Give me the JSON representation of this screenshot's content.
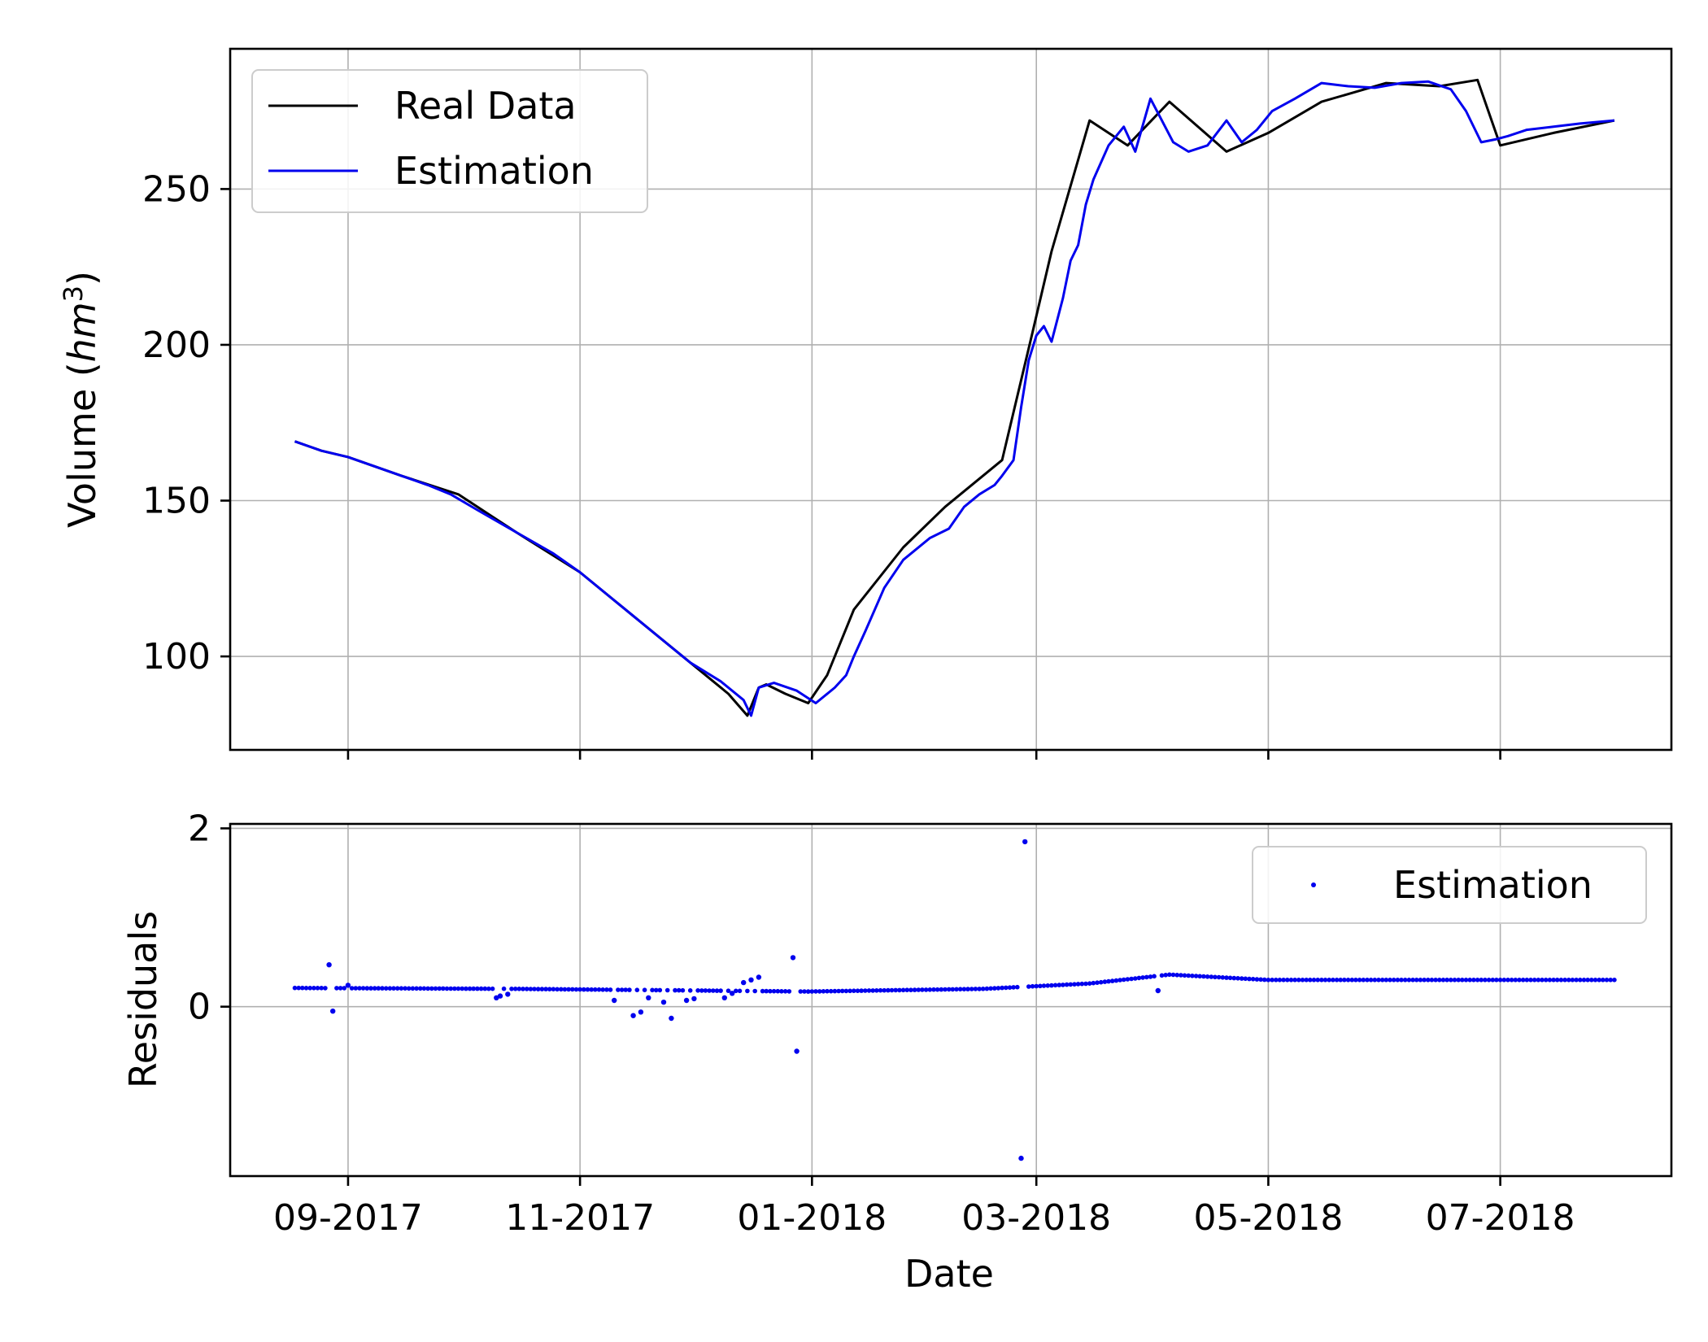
{
  "chart_data": [
    {
      "type": "line",
      "xlabel": "",
      "ylabel": "Volume",
      "ylabel_unit_base": "hm",
      "ylabel_unit_exp": "3",
      "x_type": "date",
      "xlim": [
        "2017-08-01",
        "2018-08-15"
      ],
      "ylim": [
        70,
        295
      ],
      "yticks": [
        100,
        150,
        200,
        250
      ],
      "xticks": [
        "2017-09-01",
        "2017-11-01",
        "2018-01-01",
        "2018-03-01",
        "2018-05-01",
        "2018-07-01"
      ],
      "xtick_labels_shown": false,
      "grid": true,
      "legend": {
        "position": "upper-left",
        "entries": [
          "Real Data",
          "Estimation"
        ]
      },
      "series": [
        {
          "name": "Real Data",
          "color": "#000000",
          "x": [
            "2017-08-18",
            "2017-08-25",
            "2017-09-01",
            "2017-09-15",
            "2017-09-30",
            "2017-10-15",
            "2017-11-01",
            "2017-11-15",
            "2017-11-30",
            "2017-12-10",
            "2017-12-15",
            "2017-12-18",
            "2017-12-20",
            "2017-12-25",
            "2017-12-31",
            "2018-01-05",
            "2018-01-12",
            "2018-01-25",
            "2018-02-05",
            "2018-02-20",
            "2018-02-28",
            "2018-03-05",
            "2018-03-15",
            "2018-03-25",
            "2018-04-05",
            "2018-04-20",
            "2018-05-01",
            "2018-05-15",
            "2018-06-01",
            "2018-06-15",
            "2018-06-25",
            "2018-07-01",
            "2018-07-15",
            "2018-07-31"
          ],
          "y": [
            169,
            166,
            164,
            158,
            152,
            140,
            127,
            113,
            98,
            88,
            81,
            90,
            91,
            88,
            85,
            94,
            115,
            135,
            148,
            163,
            204,
            230,
            272,
            264,
            278,
            262,
            268,
            278,
            284,
            283,
            285,
            264,
            268,
            272
          ]
        },
        {
          "name": "Estimation",
          "color": "#0000ee",
          "x": [
            "2017-08-18",
            "2017-08-25",
            "2017-09-01",
            "2017-09-08",
            "2017-09-15",
            "2017-09-22",
            "2017-09-28",
            "2017-10-05",
            "2017-10-15",
            "2017-10-25",
            "2017-11-01",
            "2017-11-10",
            "2017-11-15",
            "2017-11-22",
            "2017-11-30",
            "2017-12-08",
            "2017-12-14",
            "2017-12-16",
            "2017-12-18",
            "2017-12-22",
            "2017-12-28",
            "2018-01-02",
            "2018-01-07",
            "2018-01-10",
            "2018-01-12",
            "2018-01-15",
            "2018-01-20",
            "2018-01-25",
            "2018-02-01",
            "2018-02-06",
            "2018-02-10",
            "2018-02-14",
            "2018-02-18",
            "2018-02-20",
            "2018-02-23",
            "2018-02-25",
            "2018-02-27",
            "2018-03-01",
            "2018-03-03",
            "2018-03-05",
            "2018-03-08",
            "2018-03-10",
            "2018-03-12",
            "2018-03-14",
            "2018-03-16",
            "2018-03-20",
            "2018-03-24",
            "2018-03-27",
            "2018-03-31",
            "2018-04-03",
            "2018-04-06",
            "2018-04-10",
            "2018-04-15",
            "2018-04-20",
            "2018-04-24",
            "2018-04-28",
            "2018-05-02",
            "2018-05-08",
            "2018-05-15",
            "2018-05-22",
            "2018-05-29",
            "2018-06-05",
            "2018-06-12",
            "2018-06-18",
            "2018-06-22",
            "2018-06-26",
            "2018-06-30",
            "2018-07-03",
            "2018-07-08",
            "2018-07-15",
            "2018-07-22",
            "2018-07-31"
          ],
          "y": [
            169,
            166,
            164,
            161,
            158,
            155,
            152,
            147,
            140,
            133,
            127,
            118,
            113,
            106,
            98,
            92,
            86,
            81,
            90,
            91.5,
            89,
            85,
            90,
            94,
            100,
            108,
            122,
            131,
            138,
            141,
            148,
            152,
            155,
            158,
            163,
            180,
            195,
            203,
            206,
            201,
            215,
            227,
            232,
            245,
            253,
            264,
            270,
            262,
            279,
            272,
            265,
            262,
            264,
            272,
            265,
            269,
            275,
            279,
            284,
            283,
            282.5,
            284,
            284.5,
            282,
            275,
            265,
            266,
            267,
            269,
            270,
            271,
            272
          ]
        }
      ]
    },
    {
      "type": "scatter",
      "xlabel": "Date",
      "ylabel": "Residuals",
      "x_type": "date",
      "xlim": [
        "2017-08-01",
        "2018-08-15"
      ],
      "ylim": [
        -1.9,
        2.05
      ],
      "yticks": [
        0,
        2
      ],
      "xticks": [
        "2017-09-01",
        "2017-11-01",
        "2018-01-01",
        "2018-03-01",
        "2018-05-01",
        "2018-07-01"
      ],
      "xtick_labels": [
        "09-2017",
        "11-2017",
        "01-2018",
        "03-2018",
        "05-2018",
        "07-2018"
      ],
      "grid": true,
      "legend": {
        "position": "upper-right",
        "entries": [
          "Estimation"
        ]
      },
      "series": [
        {
          "name": "Estimation",
          "color": "#0000ee",
          "baseline_start": "2017-08-18",
          "baseline_end": "2018-07-31",
          "baseline_knots_x": [
            "2017-08-18",
            "2017-10-15",
            "2017-12-31",
            "2018-02-15",
            "2018-03-15",
            "2018-04-05",
            "2018-05-01",
            "2018-07-31"
          ],
          "baseline_knots_y": [
            0.21,
            0.2,
            0.17,
            0.2,
            0.26,
            0.36,
            0.3,
            0.3
          ],
          "outliers_x": [
            "2017-08-27",
            "2017-08-28",
            "2017-09-01",
            "2017-10-10",
            "2017-10-11",
            "2017-10-13",
            "2017-11-10",
            "2017-11-15",
            "2017-11-17",
            "2017-11-19",
            "2017-11-23",
            "2017-11-25",
            "2017-11-29",
            "2017-12-01",
            "2017-12-09",
            "2017-12-11",
            "2017-12-14",
            "2017-12-16",
            "2017-12-18",
            "2017-12-27",
            "2017-12-28",
            "2018-02-25",
            "2018-02-26",
            "2018-04-02"
          ],
          "outliers_y": [
            0.47,
            -0.05,
            0.24,
            0.1,
            0.12,
            0.14,
            0.07,
            -0.1,
            -0.06,
            0.1,
            0.05,
            -0.13,
            0.07,
            0.09,
            0.1,
            0.15,
            0.27,
            0.3,
            0.33,
            0.55,
            -0.5,
            -1.7,
            1.85,
            0.18
          ]
        }
      ]
    }
  ]
}
